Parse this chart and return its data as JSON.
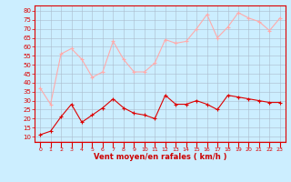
{
  "x": [
    0,
    1,
    2,
    3,
    4,
    5,
    6,
    7,
    8,
    9,
    10,
    11,
    12,
    13,
    14,
    15,
    16,
    17,
    18,
    19,
    20,
    21,
    22,
    23
  ],
  "wind_avg": [
    11,
    13,
    21,
    28,
    18,
    22,
    26,
    31,
    26,
    23,
    22,
    20,
    33,
    28,
    28,
    30,
    28,
    25,
    33,
    32,
    31,
    30,
    29,
    29
  ],
  "wind_gust": [
    37,
    28,
    56,
    59,
    53,
    43,
    46,
    63,
    53,
    46,
    46,
    51,
    64,
    62,
    63,
    70,
    78,
    65,
    71,
    79,
    76,
    74,
    69,
    76
  ],
  "avg_color": "#dd0000",
  "gust_color": "#ffaaaa",
  "bg_color": "#cceeff",
  "grid_color": "#aabbcc",
  "xlabel": "Vent moyen/en rafales ( km/h )",
  "xlabel_color": "#cc0000",
  "ylabel_ticks": [
    10,
    15,
    20,
    25,
    30,
    35,
    40,
    45,
    50,
    55,
    60,
    65,
    70,
    75,
    80
  ],
  "ylim": [
    7,
    83
  ],
  "xlim": [
    -0.5,
    23.5
  ]
}
